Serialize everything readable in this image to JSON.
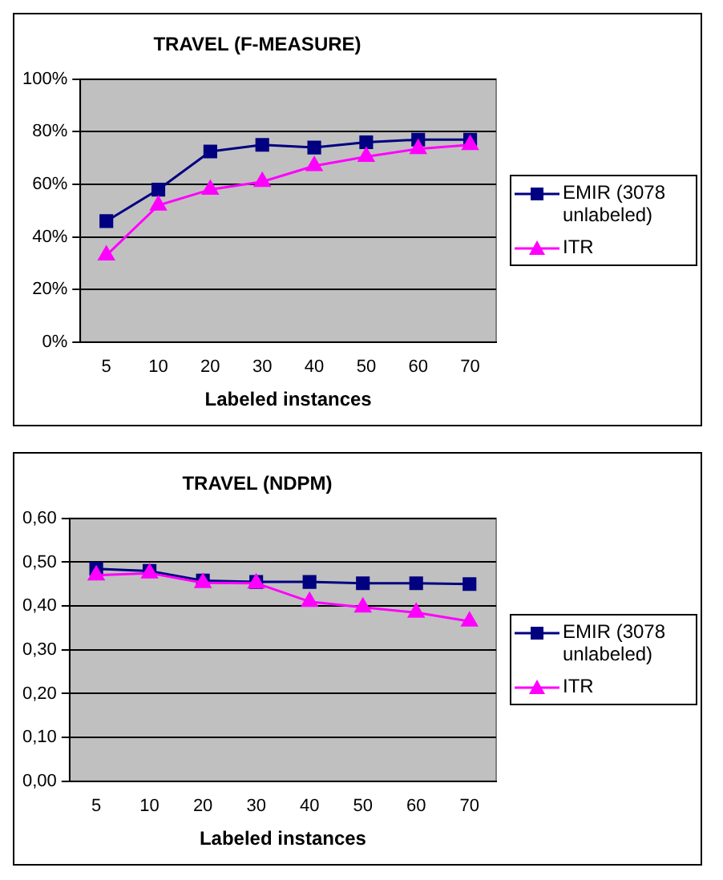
{
  "chart_data": [
    {
      "type": "line",
      "title": "TRAVEL (F-MEASURE)",
      "xlabel": "Labeled instances",
      "categories": [
        "5",
        "10",
        "20",
        "30",
        "40",
        "50",
        "60",
        "70"
      ],
      "series": [
        {
          "name": "EMIR (3078 unlabeled)",
          "color": "#000080",
          "marker": "square",
          "values": [
            46,
            58,
            72.5,
            75,
            74,
            76,
            77,
            77
          ]
        },
        {
          "name": "ITR",
          "color": "#ff00ff",
          "marker": "triangle",
          "values": [
            33,
            52,
            58,
            61,
            67,
            70.5,
            73.5,
            75
          ]
        }
      ],
      "ylim": [
        0,
        100
      ],
      "yticks": [
        {
          "value": 0,
          "label": "0%"
        },
        {
          "value": 20,
          "label": "20%"
        },
        {
          "value": 40,
          "label": "40%"
        },
        {
          "value": 60,
          "label": "60%"
        },
        {
          "value": 80,
          "label": "80%"
        },
        {
          "value": 100,
          "label": "100%"
        }
      ],
      "grid": "y",
      "legend": "right"
    },
    {
      "type": "line",
      "title": "TRAVEL (NDPM)",
      "xlabel": "Labeled instances",
      "categories": [
        "5",
        "10",
        "20",
        "30",
        "40",
        "50",
        "60",
        "70"
      ],
      "series": [
        {
          "name": "EMIR (3078 unlabeled)",
          "color": "#000080",
          "marker": "square",
          "values": [
            0.485,
            0.48,
            0.458,
            0.455,
            0.455,
            0.452,
            0.452,
            0.45
          ]
        },
        {
          "name": "ITR",
          "color": "#ff00ff",
          "marker": "triangle",
          "values": [
            0.47,
            0.475,
            0.453,
            0.452,
            0.41,
            0.397,
            0.385,
            0.365
          ]
        }
      ],
      "ylim": [
        0,
        0.6
      ],
      "yticks": [
        {
          "value": 0,
          "label": "0,00"
        },
        {
          "value": 0.1,
          "label": "0,10"
        },
        {
          "value": 0.2,
          "label": "0,20"
        },
        {
          "value": 0.3,
          "label": "0,30"
        },
        {
          "value": 0.4,
          "label": "0,40"
        },
        {
          "value": 0.5,
          "label": "0,50"
        },
        {
          "value": 0.6,
          "label": "0,60"
        }
      ],
      "grid": "y",
      "legend": "right"
    }
  ]
}
